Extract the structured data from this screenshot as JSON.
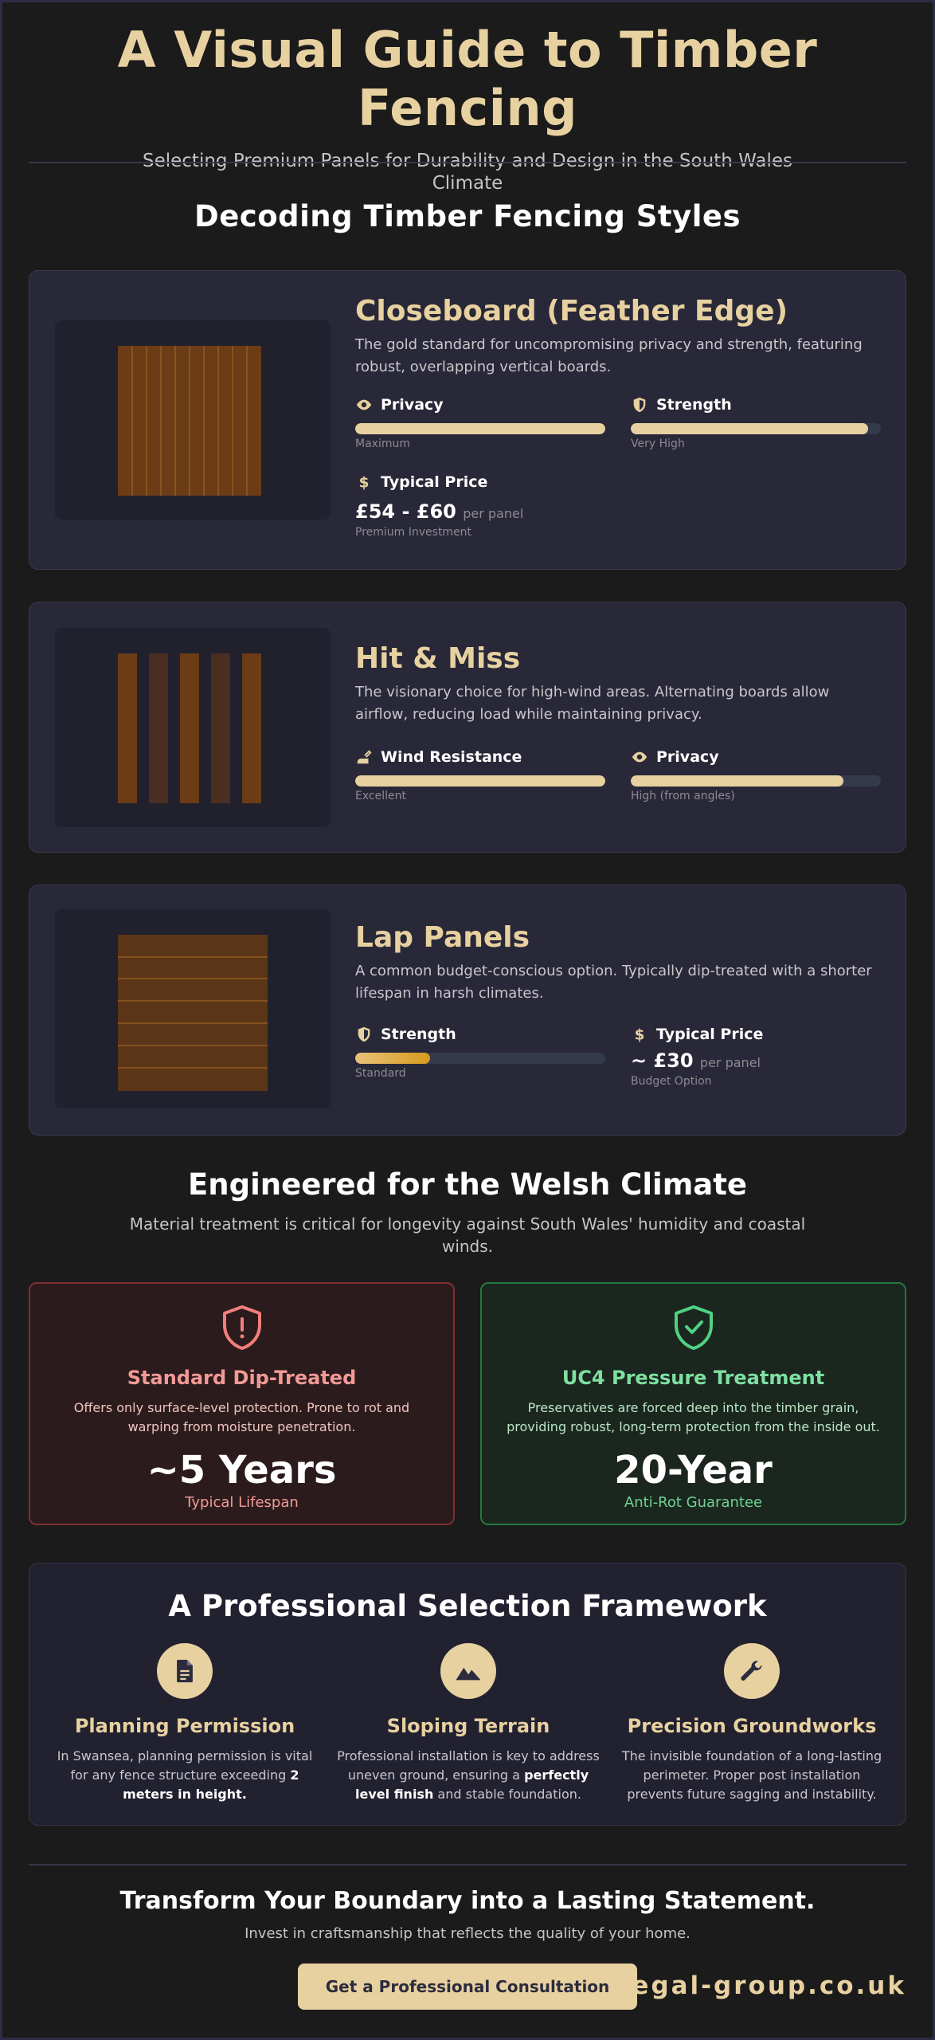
{
  "header": {
    "title": "A Visual Guide to Timber Fencing",
    "subtitle": "Selecting Premium Panels for Durability and Design in the South Wales Climate"
  },
  "styles_section": {
    "title": "Decoding Timber Fencing Styles"
  },
  "cards": [
    {
      "title": "Closeboard (Feather Edge)",
      "description": "The gold standard for uncompromising privacy and strength, featuring robust, overlapping vertical boards.",
      "metrics": [
        {
          "label": "Privacy",
          "icon": "eye-icon",
          "level": 1.0,
          "note": "Maximum"
        },
        {
          "label": "Strength",
          "icon": "shield-icon",
          "level": 0.95,
          "note": "Very High"
        }
      ],
      "price": {
        "label": "Typical Price",
        "icon": "dollar-icon",
        "value": "£54 - £60",
        "unit": "per panel",
        "note": "Premium Investment"
      }
    },
    {
      "title": "Hit & Miss",
      "description": "The visionary choice for high-wind areas. Alternating boards allow airflow, reducing load while maintaining privacy.",
      "metrics": [
        {
          "label": "Wind Resistance",
          "icon": "wind-icon",
          "level": 1.0,
          "note": "Excellent"
        },
        {
          "label": "Privacy",
          "icon": "eye-icon",
          "level": 0.85,
          "note": "High (from angles)"
        }
      ]
    },
    {
      "title": "Lap Panels",
      "description": "A common budget-conscious option. Typically dip-treated with a shorter lifespan in harsh climates.",
      "metrics": [
        {
          "label": "Strength",
          "icon": "shield-icon",
          "level": 0.3,
          "note": "Standard"
        }
      ],
      "price": {
        "label": "Typical Price",
        "icon": "dollar-icon",
        "value": "~ £30",
        "unit": "per panel",
        "note": "Budget Option"
      }
    }
  ],
  "climate": {
    "title": "Engineered for the Welsh Climate",
    "subtitle": "Material treatment is critical for longevity against South Wales' humidity and coastal winds.",
    "standard": {
      "title": "Standard Dip-Treated",
      "description": "Offers only surface-level protection. Prone to rot and warping from moisture penetration.",
      "big": "~5 Years",
      "small": "Typical Lifespan",
      "color": "#f29a96"
    },
    "uc4": {
      "title": "UC4 Pressure Treatment",
      "description": "Preservatives are forced deep into the timber grain, providing robust, long-term protection from the inside out.",
      "big": "20-Year",
      "small": "Anti-Rot Guarantee",
      "color": "#7ee0a0"
    }
  },
  "framework": {
    "title": "A Professional Selection Framework",
    "items": [
      {
        "title": "Planning Permission",
        "icon": "document-icon",
        "text": "In Swansea, planning permission is vital for any fence structure exceeding ",
        "bold": "2 meters in height.",
        "after": ""
      },
      {
        "title": "Sloping Terrain",
        "icon": "mountain-icon",
        "text": "Professional installation is key to address uneven ground, ensuring a ",
        "bold": "perfectly level finish",
        "after": " and stable foundation."
      },
      {
        "title": "Precision Groundworks",
        "icon": "wrench-icon",
        "text": "The invisible foundation of a long-lasting perimeter. Proper post installation prevents future sagging and instability.",
        "bold": "",
        "after": ""
      }
    ]
  },
  "cta": {
    "title": "Transform Your Boundary into a Lasting Statement.",
    "subtitle": "Invest in craftsmanship that reflects the quality of your home.",
    "button": "Get a Professional Consultation",
    "site": "regal-group.co.uk"
  },
  "colors": {
    "accent": "#e8d1a0",
    "background": "#1b1b1b",
    "card": "#282838"
  }
}
